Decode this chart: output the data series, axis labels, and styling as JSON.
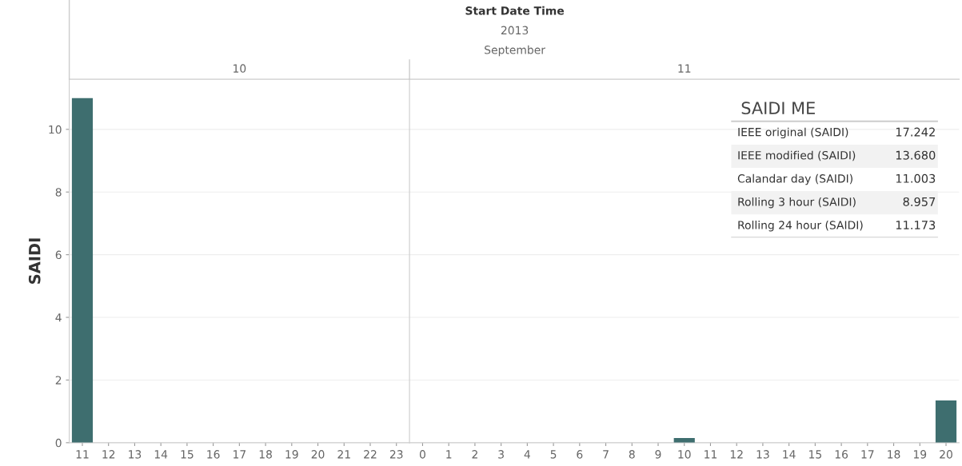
{
  "chart_data": [
    {
      "type": "bar",
      "title": "10",
      "ylabel": "SAIDI",
      "annotations": [
        "Start Date Time",
        "2013",
        "September"
      ],
      "categories": [
        "11",
        "12",
        "13",
        "14",
        "15",
        "16",
        "17",
        "18",
        "19",
        "20",
        "21",
        "22",
        "23"
      ],
      "values": [
        11.0,
        0,
        0,
        0,
        0,
        0,
        0,
        0,
        0,
        0,
        0,
        0,
        0
      ],
      "color": "#3e6e6f",
      "ylim": [
        0,
        11.6
      ],
      "yticks": [
        0,
        2,
        4,
        6,
        8,
        10
      ],
      "grid": "y"
    },
    {
      "type": "bar",
      "title": "11",
      "categories": [
        "0",
        "1",
        "2",
        "3",
        "4",
        "5",
        "6",
        "7",
        "8",
        "9",
        "10",
        "11",
        "12",
        "13",
        "14",
        "15",
        "16",
        "17",
        "18",
        "19",
        "20"
      ],
      "values": [
        0,
        0,
        0,
        0,
        0,
        0,
        0,
        0,
        0,
        0,
        0.15,
        0,
        0,
        0,
        0,
        0,
        0,
        0,
        0,
        0,
        1.35
      ],
      "color": "#3e6e6f",
      "ylim": [
        0,
        11.6
      ],
      "yticks": [
        0,
        2,
        4,
        6,
        8,
        10
      ],
      "grid": "y",
      "tick_labels": "x"
    },
    {
      "type": "other",
      "title": "SAIDI ME",
      "annotations": [
        "IEEE original (SAIDI)",
        "17.242",
        "IEEE modified (SAIDI)",
        "13.680",
        "Calandar day (SAIDI)",
        "11.003",
        "Rolling 3 hour (SAIDI)",
        "8.957",
        "Rolling 24 hour (SAIDI)",
        "11.173"
      ]
    }
  ]
}
